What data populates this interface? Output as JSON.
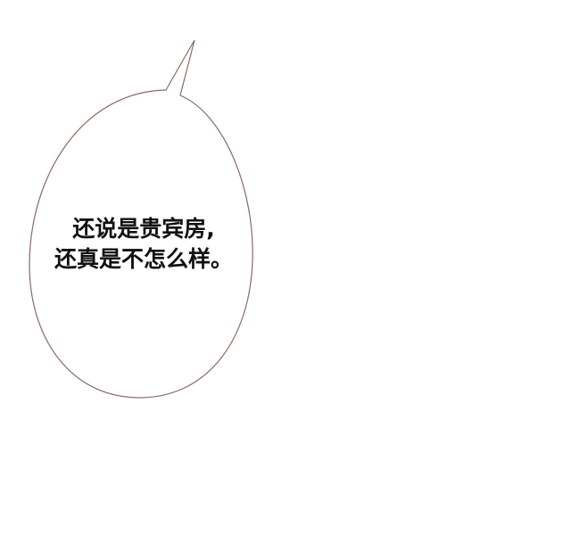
{
  "speech_bubble": {
    "lines": [
      "还说是贵宾房,",
      "还真是不怎么样。"
    ],
    "outline_color": "#8a6a62",
    "fill_color": "#ffffff",
    "text_color": "#111111"
  }
}
